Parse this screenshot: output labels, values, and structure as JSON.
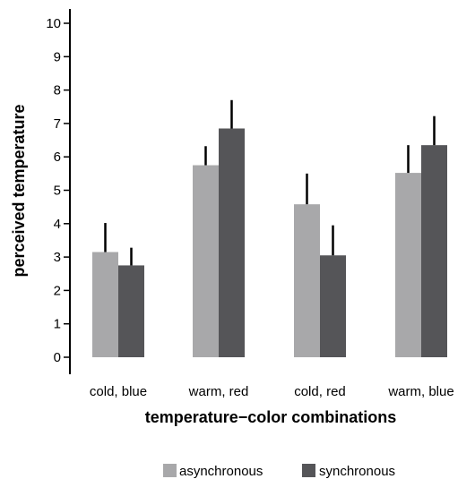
{
  "chart_data": {
    "type": "bar",
    "title": "",
    "xlabel": "temperature−color combinations",
    "ylabel": "perceived temperature",
    "ylim": [
      0,
      10
    ],
    "yticks": [
      0,
      1,
      2,
      3,
      4,
      5,
      6,
      7,
      8,
      9,
      10
    ],
    "categories": [
      "cold, blue",
      "warm, red",
      "cold, red",
      "warm, blue"
    ],
    "series": [
      {
        "name": "asynchronous",
        "color": "#a8a8aa",
        "values": [
          3.15,
          5.75,
          4.58,
          5.52
        ],
        "error_upper": [
          4.02,
          6.32,
          5.5,
          6.35
        ]
      },
      {
        "name": "synchronous",
        "color": "#555558",
        "values": [
          2.75,
          6.85,
          3.05,
          6.35
        ],
        "error_upper": [
          3.28,
          7.7,
          3.95,
          7.22
        ]
      }
    ],
    "grid": false,
    "legend_position": "bottom-center"
  }
}
